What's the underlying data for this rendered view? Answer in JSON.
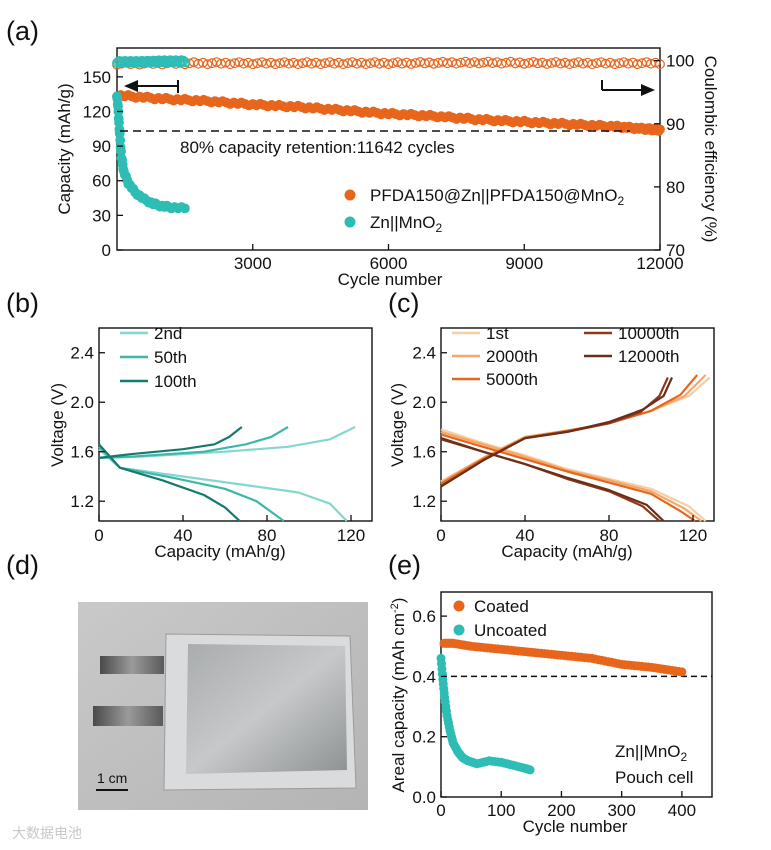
{
  "panels": [
    {
      "id": "a",
      "label": "(a)",
      "type": "scatter",
      "xlabel": "Cycle number",
      "ylabel": "Capacity (mAh/g)",
      "y2label": "Coulombic efficiency (%)",
      "xlim": [
        0,
        12000
      ],
      "ylim": [
        0,
        175
      ],
      "y2lim": [
        70,
        102
      ],
      "xticks": [
        "3000",
        "6000",
        "9000",
        "12000"
      ],
      "yticks": [
        "0",
        "30",
        "60",
        "90",
        "120",
        "150"
      ],
      "y2ticks": [
        "70",
        "80",
        "90",
        "100"
      ],
      "annotation": "80% capacity retention:11642 cycles",
      "retention_line_y": 105,
      "legend": [
        "PFDA150@Zn||PFDA150@MnO",
        "2",
        "Zn||MnO",
        "2"
      ],
      "series": [
        {
          "name": "PFDA150@Zn||PFDA150@MnO2",
          "axis": "capacity",
          "color": "#e8651c",
          "points": [
            [
              0,
              134
            ],
            [
              1000,
              131
            ],
            [
              2000,
              129
            ],
            [
              3000,
              126
            ],
            [
              4000,
              124
            ],
            [
              5000,
              121
            ],
            [
              6000,
              118
            ],
            [
              7000,
              116
            ],
            [
              8000,
              113
            ],
            [
              9000,
              111
            ],
            [
              10000,
              109
            ],
            [
              11000,
              107
            ],
            [
              11642,
              105
            ],
            [
              12000,
              104
            ]
          ]
        },
        {
          "name": "Zn||MnO2",
          "axis": "capacity",
          "color": "#2ebdb5",
          "points": [
            [
              0,
              134
            ],
            [
              30,
              120
            ],
            [
              60,
              100
            ],
            [
              100,
              80
            ],
            [
              150,
              68
            ],
            [
              250,
              58
            ],
            [
              400,
              50
            ],
            [
              600,
              44
            ],
            [
              800,
              40
            ],
            [
              1000,
              38
            ],
            [
              1200,
              37
            ],
            [
              1500,
              36
            ]
          ]
        },
        {
          "name": "PFDA150@Zn||PFDA150@MnO2 CE",
          "axis": "ce",
          "color": "#e8651c",
          "points": [
            [
              0,
              99.5
            ],
            [
              2000,
              99.6
            ],
            [
              4000,
              99.6
            ],
            [
              6000,
              99.6
            ],
            [
              8000,
              99.7
            ],
            [
              10000,
              99.6
            ],
            [
              12000,
              99.6
            ]
          ]
        },
        {
          "name": "Zn||MnO2 CE",
          "axis": "ce",
          "color": "#2ebdb5",
          "points": [
            [
              0,
              99.8
            ],
            [
              500,
              99.8
            ],
            [
              1000,
              99.9
            ],
            [
              1500,
              99.9
            ]
          ]
        }
      ]
    },
    {
      "id": "b",
      "label": "(b)",
      "type": "line",
      "xlabel": "Capacity (mAh/g)",
      "ylabel": "Voltage (V)",
      "xlim": [
        0,
        130
      ],
      "ylim": [
        1.04,
        2.6
      ],
      "xticks": [
        "0",
        "40",
        "80",
        "120"
      ],
      "yticks": [
        "1.2",
        "1.6",
        "2.0",
        "2.4"
      ],
      "legend": [
        "2nd",
        "50th",
        "100th"
      ],
      "series": [
        {
          "name": "2nd",
          "color": "#85d6cf",
          "charge": [
            [
              0,
              1.55
            ],
            [
              20,
              1.56
            ],
            [
              60,
              1.6
            ],
            [
              90,
              1.64
            ],
            [
              110,
              1.7
            ],
            [
              122,
              1.8
            ]
          ],
          "discharge": [
            [
              0,
              1.62
            ],
            [
              10,
              1.47
            ],
            [
              40,
              1.4
            ],
            [
              70,
              1.33
            ],
            [
              95,
              1.27
            ],
            [
              110,
              1.18
            ],
            [
              118,
              1.04
            ]
          ]
        },
        {
          "name": "50th",
          "color": "#3fb7a8",
          "charge": [
            [
              0,
              1.55
            ],
            [
              15,
              1.56
            ],
            [
              50,
              1.6
            ],
            [
              70,
              1.66
            ],
            [
              82,
              1.72
            ],
            [
              90,
              1.8
            ]
          ],
          "discharge": [
            [
              0,
              1.64
            ],
            [
              10,
              1.47
            ],
            [
              35,
              1.39
            ],
            [
              60,
              1.3
            ],
            [
              75,
              1.2
            ],
            [
              88,
              1.04
            ]
          ]
        },
        {
          "name": "100th",
          "color": "#137a6e",
          "charge": [
            [
              0,
              1.55
            ],
            [
              15,
              1.58
            ],
            [
              40,
              1.62
            ],
            [
              55,
              1.66
            ],
            [
              62,
              1.72
            ],
            [
              68,
              1.8
            ]
          ],
          "discharge": [
            [
              0,
              1.66
            ],
            [
              10,
              1.47
            ],
            [
              30,
              1.37
            ],
            [
              50,
              1.25
            ],
            [
              60,
              1.15
            ],
            [
              67,
              1.04
            ]
          ]
        }
      ]
    },
    {
      "id": "c",
      "label": "(c)",
      "type": "line",
      "xlabel": "Capacity (mAh/g)",
      "ylabel": "Voltage (V)",
      "xlim": [
        0,
        130
      ],
      "ylim": [
        1.04,
        2.6
      ],
      "xticks": [
        "0",
        "40",
        "80",
        "120"
      ],
      "yticks": [
        "1.2",
        "1.6",
        "2.0",
        "2.4"
      ],
      "legend": [
        "1st",
        "2000th",
        "5000th",
        "10000th",
        "12000th"
      ],
      "series": [
        {
          "name": "1st",
          "color": "#f4cfa5",
          "charge": [
            [
              0,
              1.36
            ],
            [
              20,
              1.55
            ],
            [
              40,
              1.72
            ],
            [
              60,
              1.77
            ],
            [
              80,
              1.83
            ],
            [
              100,
              1.93
            ],
            [
              118,
              2.05
            ],
            [
              128,
              2.2
            ]
          ],
          "discharge": [
            [
              0,
              1.78
            ],
            [
              20,
              1.67
            ],
            [
              40,
              1.57
            ],
            [
              60,
              1.46
            ],
            [
              80,
              1.38
            ],
            [
              100,
              1.3
            ],
            [
              118,
              1.16
            ],
            [
              126,
              1.04
            ]
          ]
        },
        {
          "name": "2000th",
          "color": "#f3a868",
          "charge": [
            [
              0,
              1.35
            ],
            [
              20,
              1.55
            ],
            [
              40,
              1.72
            ],
            [
              60,
              1.77
            ],
            [
              80,
              1.83
            ],
            [
              100,
              1.93
            ],
            [
              116,
              2.05
            ],
            [
              126,
              2.22
            ]
          ],
          "discharge": [
            [
              0,
              1.76
            ],
            [
              20,
              1.66
            ],
            [
              40,
              1.56
            ],
            [
              60,
              1.45
            ],
            [
              80,
              1.37
            ],
            [
              100,
              1.28
            ],
            [
              116,
              1.14
            ],
            [
              124,
              1.04
            ]
          ]
        },
        {
          "name": "5000th",
          "color": "#e8651c",
          "charge": [
            [
              0,
              1.34
            ],
            [
              20,
              1.54
            ],
            [
              40,
              1.71
            ],
            [
              60,
              1.77
            ],
            [
              80,
              1.83
            ],
            [
              100,
              1.93
            ],
            [
              114,
              2.06
            ],
            [
              122,
              2.22
            ]
          ],
          "discharge": [
            [
              0,
              1.74
            ],
            [
              20,
              1.64
            ],
            [
              40,
              1.54
            ],
            [
              60,
              1.44
            ],
            [
              80,
              1.35
            ],
            [
              100,
              1.26
            ],
            [
              114,
              1.12
            ],
            [
              121,
              1.04
            ]
          ]
        },
        {
          "name": "10000th",
          "color": "#8c3a16",
          "charge": [
            [
              0,
              1.32
            ],
            [
              20,
              1.53
            ],
            [
              40,
              1.71
            ],
            [
              60,
              1.76
            ],
            [
              80,
              1.83
            ],
            [
              95,
              1.92
            ],
            [
              104,
              2.05
            ],
            [
              108,
              2.2
            ]
          ],
          "discharge": [
            [
              0,
              1.7
            ],
            [
              20,
              1.6
            ],
            [
              40,
              1.5
            ],
            [
              60,
              1.38
            ],
            [
              80,
              1.28
            ],
            [
              96,
              1.16
            ],
            [
              104,
              1.04
            ]
          ]
        },
        {
          "name": "12000th",
          "color": "#6b2e1c",
          "charge": [
            [
              0,
              1.32
            ],
            [
              20,
              1.53
            ],
            [
              40,
              1.71
            ],
            [
              60,
              1.76
            ],
            [
              80,
              1.84
            ],
            [
              96,
              1.94
            ],
            [
              106,
              2.05
            ],
            [
              110,
              2.2
            ]
          ],
          "discharge": [
            [
              0,
              1.71
            ],
            [
              20,
              1.6
            ],
            [
              40,
              1.5
            ],
            [
              60,
              1.39
            ],
            [
              80,
              1.29
            ],
            [
              98,
              1.17
            ],
            [
              106,
              1.04
            ]
          ]
        }
      ]
    },
    {
      "id": "d",
      "label": "(d)",
      "type": "photo",
      "scale_label": "1 cm"
    },
    {
      "id": "e",
      "label": "(e)",
      "type": "scatter",
      "xlabel": "Cycle number",
      "ylabel": "Areal capacity (mAh cm",
      "ylabel_sup": "-2",
      "ylabel_end": ")",
      "xlim": [
        0,
        450
      ],
      "ylim": [
        0,
        0.68
      ],
      "xticks": [
        "0",
        "100",
        "200",
        "300",
        "400"
      ],
      "yticks": [
        "0.0",
        "0.2",
        "0.4",
        "0.6"
      ],
      "dashed_y": 0.4,
      "legend": [
        "Coated",
        "Uncoated"
      ],
      "note_line1": "Zn||MnO",
      "note_line1_sub": "2",
      "note_line2": "Pouch cell",
      "series": [
        {
          "name": "Coated",
          "color": "#e8651c",
          "points": [
            [
              5,
              0.51
            ],
            [
              20,
              0.51
            ],
            [
              50,
              0.5
            ],
            [
              100,
              0.49
            ],
            [
              150,
              0.48
            ],
            [
              200,
              0.47
            ],
            [
              250,
              0.46
            ],
            [
              300,
              0.44
            ],
            [
              350,
              0.43
            ],
            [
              400,
              0.415
            ]
          ]
        },
        {
          "name": "Uncoated",
          "color": "#2ebdb5",
          "points": [
            [
              0,
              0.46
            ],
            [
              3,
              0.39
            ],
            [
              6,
              0.33
            ],
            [
              10,
              0.27
            ],
            [
              15,
              0.22
            ],
            [
              20,
              0.18
            ],
            [
              28,
              0.15
            ],
            [
              36,
              0.13
            ],
            [
              45,
              0.12
            ],
            [
              60,
              0.11
            ],
            [
              80,
              0.12
            ],
            [
              100,
              0.115
            ],
            [
              120,
              0.105
            ],
            [
              140,
              0.095
            ],
            [
              148,
              0.09
            ]
          ]
        }
      ]
    }
  ],
  "chart_data": [
    {
      "type": "scatter",
      "title": "(a)",
      "xlabel": "Cycle number",
      "ylabel": "Capacity (mAh/g)",
      "y2label": "Coulombic efficiency (%)",
      "xlim": [
        0,
        12000
      ],
      "ylim": [
        0,
        175
      ],
      "y2lim": [
        70,
        102
      ],
      "annotation": "80% capacity retention:11642 cycles",
      "series": [
        {
          "name": "PFDA150@Zn||PFDA150@MnO2",
          "x": [
            0,
            2000,
            4000,
            6000,
            8000,
            10000,
            11642,
            12000
          ],
          "y": [
            134,
            129,
            124,
            118,
            113,
            109,
            105,
            104
          ]
        },
        {
          "name": "Zn||MnO2",
          "x": [
            0,
            100,
            250,
            600,
            1000,
            1500
          ],
          "y": [
            134,
            80,
            58,
            44,
            38,
            36
          ]
        },
        {
          "name": "PFDA150@Zn||PFDA150@MnO2 CE (%)",
          "x": [
            0,
            6000,
            12000
          ],
          "y": [
            99.5,
            99.6,
            99.6
          ]
        },
        {
          "name": "Zn||MnO2 CE (%)",
          "x": [
            0,
            1500
          ],
          "y": [
            99.8,
            99.9
          ]
        }
      ]
    },
    {
      "type": "line",
      "title": "(b)",
      "xlabel": "Capacity (mAh/g)",
      "ylabel": "Voltage (V)",
      "xlim": [
        0,
        130
      ],
      "ylim": [
        1.04,
        2.6
      ],
      "series": [
        {
          "name": "2nd",
          "max_capacity": 122
        },
        {
          "name": "50th",
          "max_capacity": 90
        },
        {
          "name": "100th",
          "max_capacity": 68
        }
      ]
    },
    {
      "type": "line",
      "title": "(c)",
      "xlabel": "Capacity (mAh/g)",
      "ylabel": "Voltage (V)",
      "xlim": [
        0,
        130
      ],
      "ylim": [
        1.04,
        2.6
      ],
      "series": [
        {
          "name": "1st",
          "max_capacity": 128
        },
        {
          "name": "2000th",
          "max_capacity": 126
        },
        {
          "name": "5000th",
          "max_capacity": 122
        },
        {
          "name": "10000th",
          "max_capacity": 108
        },
        {
          "name": "12000th",
          "max_capacity": 110
        }
      ]
    },
    {
      "type": "scatter",
      "title": "(e)",
      "xlabel": "Cycle number",
      "ylabel": "Areal capacity (mAh cm-2)",
      "xlim": [
        0,
        450
      ],
      "ylim": [
        0,
        0.68
      ],
      "series": [
        {
          "name": "Coated",
          "x": [
            5,
            100,
            200,
            300,
            400
          ],
          "y": [
            0.51,
            0.49,
            0.47,
            0.44,
            0.415
          ]
        },
        {
          "name": "Uncoated",
          "x": [
            0,
            10,
            20,
            45,
            100,
            148
          ],
          "y": [
            0.46,
            0.27,
            0.18,
            0.12,
            0.115,
            0.09
          ]
        }
      ]
    }
  ],
  "watermark": "大数据电池"
}
